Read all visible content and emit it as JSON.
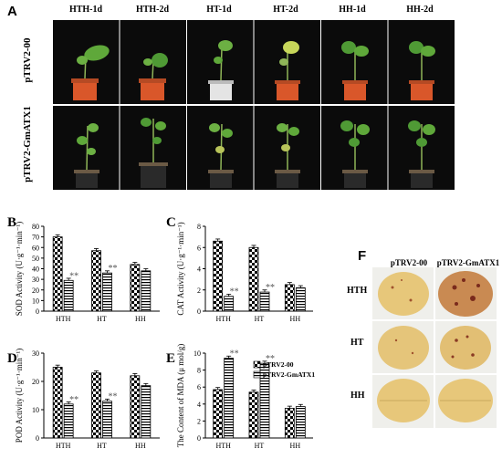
{
  "panelA": {
    "label": "A",
    "columns": [
      "HTH-1d",
      "HTH-2d",
      "HT-1d",
      "HT-2d",
      "HH-1d",
      "HH-2d"
    ],
    "rows": [
      "pTRV2-00",
      "pTRV2-GmATX1"
    ]
  },
  "colors": {
    "leaf_green": "#5fa83a",
    "pot_orange": "#d9572a",
    "leaf_yellow": "#e7c77a",
    "photo_black": "#0b0b0b"
  },
  "chart_data": [
    {
      "id": "B",
      "panel_label": "B",
      "type": "bar",
      "ylabel": "SOD Activity (U·g⁻¹·min⁻¹)",
      "categories": [
        "HTH",
        "HT",
        "HH"
      ],
      "ylim": [
        0,
        80
      ],
      "yticks": [
        0,
        10,
        20,
        30,
        40,
        50,
        60,
        70,
        80
      ],
      "series": [
        {
          "name": "pTRV2-00",
          "values": [
            70,
            57,
            44
          ]
        },
        {
          "name": "pTRV2-GmATX1",
          "values": [
            29,
            36,
            38
          ]
        }
      ],
      "significance": [
        "**",
        "**",
        ""
      ]
    },
    {
      "id": "C",
      "panel_label": "C",
      "type": "bar",
      "ylabel": "CAT Activity (U·g⁻¹·min⁻¹)",
      "categories": [
        "HTH",
        "HT",
        "HH"
      ],
      "ylim": [
        0,
        8
      ],
      "yticks": [
        0,
        2,
        4,
        6,
        8
      ],
      "series": [
        {
          "name": "pTRV2-00",
          "values": [
            6.6,
            6.0,
            2.5
          ]
        },
        {
          "name": "pTRV2-GmATX1",
          "values": [
            1.4,
            1.8,
            2.2
          ]
        }
      ],
      "significance": [
        "**",
        "**",
        ""
      ]
    },
    {
      "id": "D",
      "panel_label": "D",
      "type": "bar",
      "ylabel": "POD Activity (U·g⁻¹·min⁻¹)",
      "categories": [
        "HTH",
        "HT",
        "HH"
      ],
      "ylim": [
        0,
        30
      ],
      "yticks": [
        0,
        10,
        20,
        30
      ],
      "series": [
        {
          "name": "pTRV2-00",
          "values": [
            25,
            23,
            22
          ]
        },
        {
          "name": "pTRV2-GmATX1",
          "values": [
            12,
            13,
            18.5
          ]
        }
      ],
      "significance": [
        "**",
        "**",
        ""
      ]
    },
    {
      "id": "E",
      "panel_label": "E",
      "type": "bar",
      "ylabel": "The Content of MDA (μ mol/g)",
      "categories": [
        "HTH",
        "HT",
        "HH"
      ],
      "ylim": [
        0,
        10
      ],
      "yticks": [
        0,
        2,
        4,
        6,
        8,
        10
      ],
      "series": [
        {
          "name": "pTRV2-00",
          "values": [
            5.7,
            5.4,
            3.5
          ]
        },
        {
          "name": "pTRV2-GmATX1",
          "values": [
            9.4,
            8.8,
            3.7
          ]
        }
      ],
      "significance": [
        "**",
        "**",
        ""
      ],
      "legend": {
        "placement": "top-right",
        "entries": [
          "pTRV2-00",
          "pTRV2-GmATX1"
        ]
      }
    }
  ],
  "panelF": {
    "label": "F",
    "columns": [
      "pTRV2-00",
      "pTRV2-GmATX1"
    ],
    "rows": [
      "HTH",
      "HT",
      "HH"
    ]
  }
}
